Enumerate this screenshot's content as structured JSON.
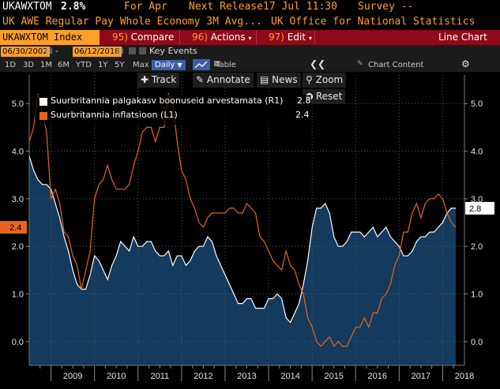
{
  "header": {
    "ticker": "UKAWXTOM",
    "value": "2.8%",
    "for_label": "For Apr",
    "next_release_label": "Next Release",
    "next_release_value": "17 Jul 11:30",
    "survey_label": "Survey --",
    "description": "UK AWE Regular Pay Whole Economy 3M Avg...",
    "source": "UK Office for National Statistics"
  },
  "toolbar": {
    "security": "UKAWXTOM Index",
    "compare_num": "95)",
    "compare_label": "Compare",
    "actions_num": "96)",
    "actions_label": "Actions",
    "edit_num": "97)",
    "edit_label": "Edit",
    "chart_type": "Line Chart"
  },
  "date_range": {
    "start": "06/30/2002",
    "end": "06/12/2018",
    "key_events": "Key Events"
  },
  "periods": {
    "items": [
      "1D",
      "3D",
      "1M",
      "6M",
      "YTD",
      "1Y",
      "5Y",
      "Max"
    ],
    "frequency": "Daily",
    "table_label": "Table",
    "chart_content": "Chart Content"
  },
  "chart_tools": {
    "track": "Track",
    "annotate": "Annotate",
    "news": "News",
    "zoom": "Zoom",
    "reset": "Reset"
  },
  "legend": {
    "series1_label": "Suurbritannia palgakasv boonuseid arvestamata (R1)",
    "series1_value": "2.8",
    "series2_label": "Suurbritannia inflatsioon (L1)",
    "series2_value": "2.4"
  },
  "colors": {
    "wage": "#ffffff",
    "wage_fill": "#143a5e",
    "inflation": "#e8641e",
    "accent": "#ffa028",
    "toolbar_bg": "#8e0a1a"
  },
  "chart_data": {
    "type": "line",
    "x_tick_labels": [
      "2009",
      "2010",
      "2011",
      "2012",
      "2013",
      "2014",
      "2015",
      "2016",
      "2017",
      "2018"
    ],
    "ylim": [
      -0.5,
      5.6
    ],
    "left_axis_ticks": [
      "5.0",
      "4.0",
      "3.0",
      "2.0",
      "1.0",
      "0.0"
    ],
    "right_axis_ticks": [
      "5.0",
      "4.0",
      "3.0",
      "2.0",
      "1.0",
      "0.0"
    ],
    "last_value_labels": {
      "left": "2.4",
      "right": "2.8"
    },
    "series": [
      {
        "name": "Suurbritannia palgakasv boonuseid arvestamata (R1)",
        "axis": "right",
        "style": "area",
        "x": [
          2008.5,
          2008.6,
          2008.7,
          2008.8,
          2008.9,
          2009.0,
          2009.1,
          2009.2,
          2009.3,
          2009.4,
          2009.5,
          2009.6,
          2009.7,
          2009.8,
          2009.9,
          2010.0,
          2010.1,
          2010.2,
          2010.3,
          2010.4,
          2010.5,
          2010.6,
          2010.7,
          2010.8,
          2010.9,
          2011.0,
          2011.1,
          2011.2,
          2011.3,
          2011.4,
          2011.5,
          2011.6,
          2011.7,
          2011.8,
          2011.9,
          2012.0,
          2012.1,
          2012.2,
          2012.3,
          2012.4,
          2012.5,
          2012.6,
          2012.7,
          2012.8,
          2012.9,
          2013.0,
          2013.1,
          2013.2,
          2013.3,
          2013.4,
          2013.5,
          2013.6,
          2013.7,
          2013.8,
          2013.9,
          2014.0,
          2014.1,
          2014.2,
          2014.3,
          2014.4,
          2014.5,
          2014.6,
          2014.7,
          2014.8,
          2014.9,
          2015.0,
          2015.1,
          2015.2,
          2015.3,
          2015.4,
          2015.5,
          2015.6,
          2015.7,
          2015.8,
          2015.9,
          2016.0,
          2016.1,
          2016.2,
          2016.3,
          2016.4,
          2016.5,
          2016.6,
          2016.7,
          2016.8,
          2016.9,
          2017.0,
          2017.1,
          2017.2,
          2017.3,
          2017.4,
          2017.5,
          2017.6,
          2017.7,
          2017.8,
          2017.9,
          2018.0,
          2018.1,
          2018.2,
          2018.3
        ],
        "y": [
          3.9,
          3.6,
          3.4,
          3.3,
          3.3,
          3.2,
          2.9,
          2.6,
          2.2,
          1.9,
          1.5,
          1.2,
          1.1,
          1.1,
          1.4,
          1.8,
          1.7,
          1.5,
          1.3,
          1.6,
          1.8,
          2.1,
          2.0,
          1.9,
          2.2,
          2.0,
          2.0,
          2.1,
          2.1,
          1.9,
          1.8,
          1.8,
          1.9,
          1.6,
          1.8,
          1.8,
          1.6,
          1.7,
          1.9,
          2.0,
          2.0,
          2.2,
          2.1,
          1.8,
          1.6,
          1.4,
          1.2,
          1.0,
          0.8,
          0.8,
          0.9,
          0.9,
          0.7,
          0.7,
          0.7,
          0.9,
          0.9,
          1.0,
          0.9,
          0.5,
          0.4,
          0.6,
          0.8,
          1.2,
          1.7,
          2.4,
          2.8,
          2.8,
          2.9,
          2.7,
          2.2,
          2.0,
          2.0,
          2.1,
          2.3,
          2.3,
          2.3,
          2.2,
          2.3,
          2.4,
          2.2,
          2.3,
          2.4,
          2.2,
          2.1,
          2.0,
          1.8,
          1.8,
          1.9,
          2.1,
          2.2,
          2.2,
          2.3,
          2.3,
          2.4,
          2.5,
          2.7,
          2.8,
          2.8
        ]
      },
      {
        "name": "Suurbritannia inflatsioon (L1)",
        "axis": "left",
        "style": "line",
        "x": [
          2008.5,
          2008.6,
          2008.7,
          2008.8,
          2008.9,
          2009.0,
          2009.1,
          2009.2,
          2009.3,
          2009.4,
          2009.5,
          2009.6,
          2009.7,
          2009.8,
          2009.9,
          2010.0,
          2010.1,
          2010.2,
          2010.3,
          2010.4,
          2010.5,
          2010.6,
          2010.7,
          2010.8,
          2010.9,
          2011.0,
          2011.1,
          2011.2,
          2011.3,
          2011.4,
          2011.5,
          2011.6,
          2011.7,
          2011.8,
          2011.9,
          2012.0,
          2012.1,
          2012.2,
          2012.3,
          2012.4,
          2012.5,
          2012.6,
          2012.7,
          2012.8,
          2012.9,
          2013.0,
          2013.1,
          2013.2,
          2013.3,
          2013.4,
          2013.5,
          2013.6,
          2013.7,
          2013.8,
          2013.9,
          2014.0,
          2014.1,
          2014.2,
          2014.3,
          2014.4,
          2014.5,
          2014.6,
          2014.7,
          2014.8,
          2014.9,
          2015.0,
          2015.1,
          2015.2,
          2015.3,
          2015.4,
          2015.5,
          2015.6,
          2015.7,
          2015.8,
          2015.9,
          2016.0,
          2016.1,
          2016.2,
          2016.3,
          2016.4,
          2016.5,
          2016.6,
          2016.7,
          2016.8,
          2016.9,
          2017.0,
          2017.1,
          2017.2,
          2017.3,
          2017.4,
          2017.5,
          2017.6,
          2017.7,
          2017.8,
          2017.9,
          2018.0,
          2018.1,
          2018.2,
          2018.3
        ],
        "y": [
          4.2,
          4.5,
          5.2,
          4.8,
          4.4,
          3.0,
          3.2,
          2.9,
          2.3,
          2.2,
          1.8,
          1.6,
          1.1,
          1.5,
          1.9,
          3.0,
          3.3,
          3.4,
          3.7,
          3.4,
          3.2,
          3.2,
          3.2,
          3.3,
          3.7,
          4.0,
          4.4,
          4.5,
          4.5,
          4.2,
          4.5,
          4.5,
          5.2,
          5.0,
          4.2,
          3.6,
          3.4,
          3.0,
          2.8,
          2.5,
          2.4,
          2.6,
          2.7,
          2.7,
          2.7,
          2.7,
          2.8,
          2.8,
          2.7,
          2.7,
          2.9,
          2.8,
          2.7,
          2.2,
          2.1,
          1.9,
          1.7,
          1.6,
          1.5,
          1.9,
          1.6,
          1.5,
          1.2,
          1.0,
          0.5,
          0.3,
          0.0,
          -0.1,
          0.0,
          0.1,
          -0.1,
          0.0,
          -0.1,
          -0.1,
          0.1,
          0.3,
          0.3,
          0.5,
          0.3,
          0.6,
          0.6,
          0.9,
          1.0,
          1.2,
          1.6,
          1.8,
          2.3,
          2.3,
          2.7,
          2.9,
          2.6,
          2.9,
          3.0,
          3.0,
          3.1,
          3.0,
          2.7,
          2.5,
          2.4
        ]
      }
    ]
  }
}
